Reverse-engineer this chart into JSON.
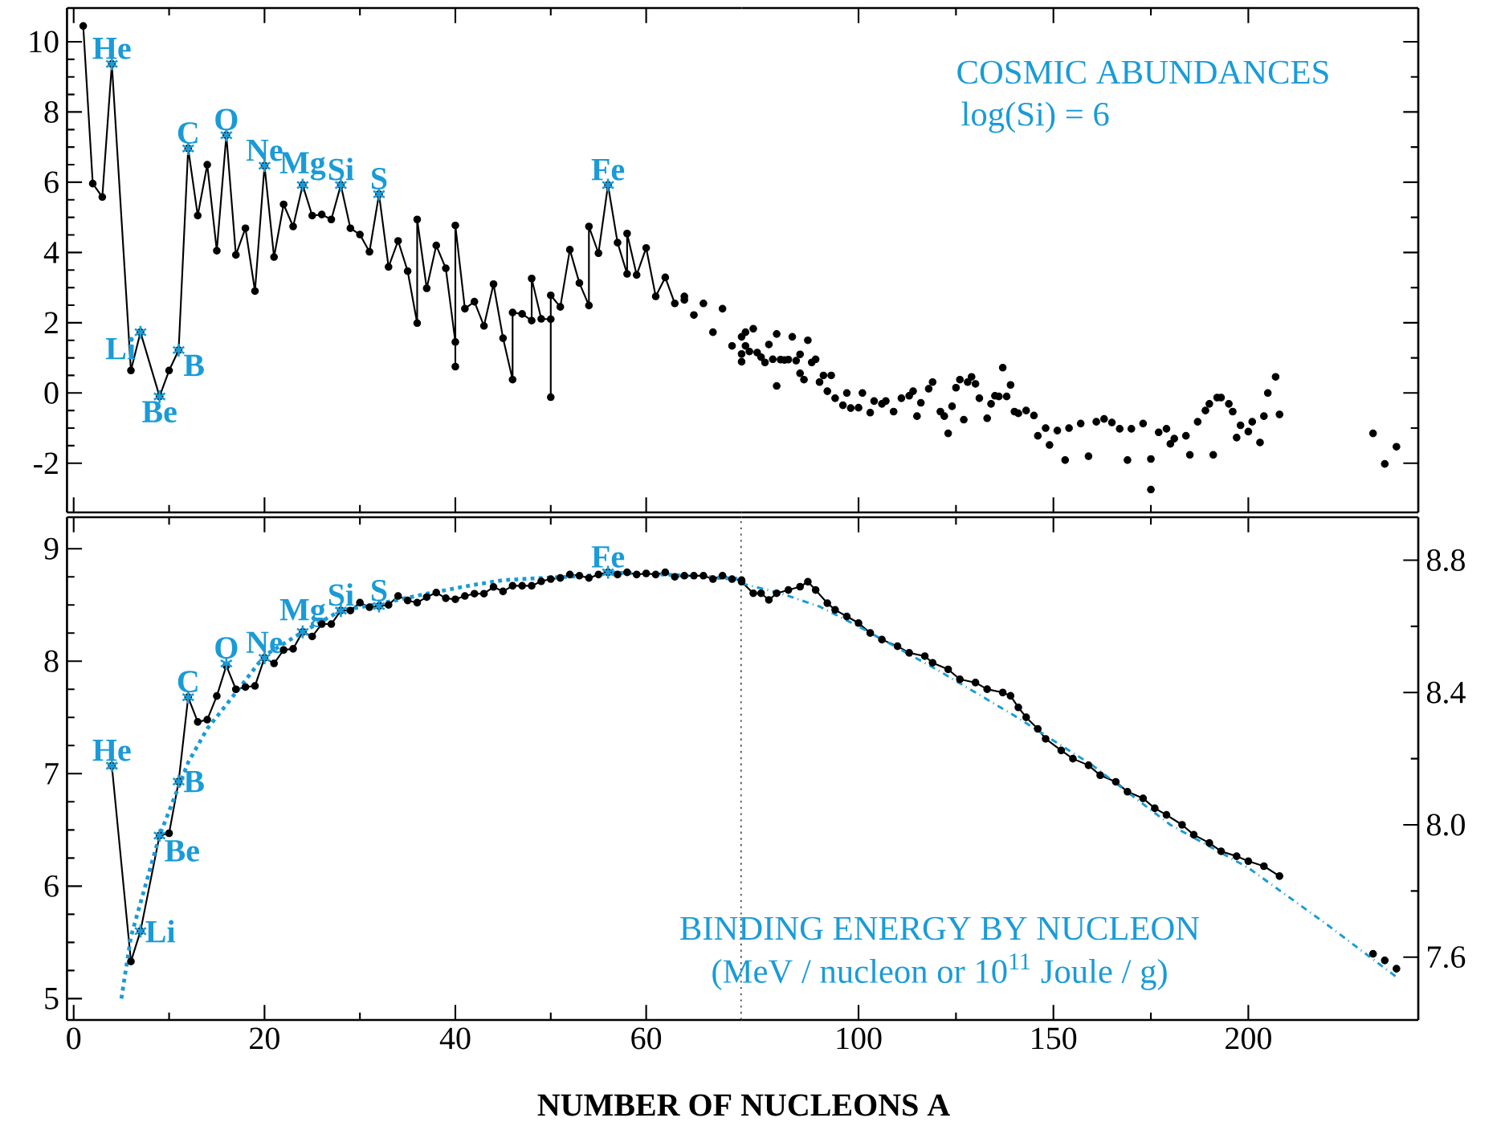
{
  "chart_data": [
    {
      "type": "line",
      "marker": "circle",
      "tick_labels": "y",
      "xlim": [
        -0.7,
        70
      ],
      "xticks": [
        0,
        20,
        40,
        60
      ],
      "ylim": [
        -3.4,
        10.96
      ],
      "yticks": [
        -2,
        0,
        2,
        4,
        6,
        8,
        10
      ],
      "series": [
        {
          "color": "#000000",
          "x": [
            1,
            2,
            3,
            4,
            6,
            7,
            9,
            10,
            11,
            12,
            13,
            14,
            15,
            16,
            17,
            18,
            19,
            20,
            21,
            22,
            23,
            24,
            25,
            26,
            27,
            28,
            29,
            30,
            31,
            32,
            33,
            34,
            35,
            36,
            36,
            37,
            38,
            39,
            40,
            40,
            40,
            41,
            42,
            43,
            44,
            45,
            46,
            46,
            47,
            48,
            48,
            49,
            50,
            50,
            50,
            51,
            52,
            53,
            54,
            54,
            55,
            56,
            57,
            58,
            58,
            59,
            60,
            61,
            62,
            63
          ],
          "values": [
            10.45,
            5.96,
            5.58,
            9.37,
            0.64,
            1.73,
            -0.1,
            0.64,
            1.22,
            6.96,
            5.05,
            6.5,
            4.05,
            7.34,
            3.93,
            4.69,
            2.9,
            6.47,
            3.87,
            5.37,
            4.74,
            5.92,
            5.05,
            5.08,
            4.94,
            5.92,
            4.69,
            4.51,
            4.02,
            5.66,
            3.59,
            4.33,
            3.47,
            1.99,
            4.94,
            2.98,
            4.2,
            3.55,
            1.45,
            0.75,
            4.77,
            2.4,
            2.6,
            1.91,
            3.1,
            1.56,
            0.38,
            2.29,
            2.25,
            2.06,
            3.26,
            2.11,
            2.1,
            -0.12,
            2.78,
            2.45,
            4.08,
            3.13,
            2.49,
            4.74,
            3.98,
            5.92,
            4.28,
            3.39,
            4.54,
            3.36,
            4.13,
            2.75,
            3.29,
            2.55
          ]
        },
        {
          "type": "scatter",
          "color": "#000000",
          "x": [
            64,
            64,
            65,
            66,
            67,
            68,
            69,
            70,
            70,
            70
          ],
          "values": [
            2.75,
            2.65,
            2.22,
            2.55,
            1.73,
            2.4,
            1.34,
            1.6,
            1.11,
            0.89
          ]
        }
      ],
      "annotations": [
        {
          "text": "He",
          "x": 4,
          "y": 9.37
        },
        {
          "text": "Li",
          "x": 7,
          "y": 1.73
        },
        {
          "text": "Be",
          "x": 9,
          "y": -0.1
        },
        {
          "text": "B",
          "x": 11,
          "y": 1.22
        },
        {
          "text": "C",
          "x": 12,
          "y": 6.96
        },
        {
          "text": "O",
          "x": 16,
          "y": 7.34
        },
        {
          "text": "Ne",
          "x": 20,
          "y": 6.47
        },
        {
          "text": "Mg",
          "x": 24,
          "y": 5.92
        },
        {
          "text": "Si",
          "x": 28,
          "y": 5.92
        },
        {
          "text": "S",
          "x": 32,
          "y": 5.66
        },
        {
          "text": "Fe",
          "x": 56,
          "y": 5.92
        }
      ]
    },
    {
      "type": "scatter",
      "title": "COSMIC ABUNDANCES",
      "subtitle": "log(Si) = 6",
      "marker": "circle",
      "tick_labels": false,
      "xlim": [
        70,
        243.6
      ],
      "xticks": [
        100,
        150,
        200
      ],
      "ylim": [
        -3.4,
        10.96
      ],
      "yticks": [
        -2,
        0,
        2,
        4,
        6,
        8,
        10
      ],
      "series": [
        {
          "color": "#000000",
          "x": [
            71,
            71,
            72,
            73,
            74,
            75,
            76,
            77,
            78,
            79,
            79,
            80,
            81,
            82,
            83,
            84,
            85,
            85,
            86,
            87,
            88,
            89,
            90,
            91,
            92,
            93,
            94,
            96,
            97,
            98,
            100,
            101,
            103,
            104,
            106,
            107,
            109,
            111,
            113,
            114,
            115,
            116,
            118,
            119,
            121,
            122,
            123,
            124,
            125,
            126,
            127,
            128,
            129,
            130,
            131,
            133,
            134,
            135,
            136,
            137,
            138,
            139,
            140,
            141,
            143,
            145,
            146,
            148,
            149,
            151,
            153,
            154,
            157,
            159,
            161,
            163,
            165,
            167,
            169,
            170,
            173,
            175,
            175,
            177,
            179,
            180,
            181,
            184,
            185,
            187,
            189,
            190,
            191,
            192,
            193,
            195,
            196,
            197,
            198,
            200,
            201,
            203,
            204,
            205,
            207,
            208,
            232,
            235,
            238
          ],
          "values": [
            1.73,
            1.34,
            1.18,
            1.83,
            1.15,
            1.02,
            0.87,
            1.38,
            0.96,
            1.68,
            0.2,
            0.95,
            0.94,
            0.95,
            1.6,
            0.92,
            1.1,
            0.56,
            0.38,
            1.5,
            0.87,
            0.96,
            0.31,
            0.5,
            0.05,
            0.5,
            -0.15,
            -0.35,
            0.0,
            -0.43,
            -0.42,
            0.0,
            -0.56,
            -0.23,
            -0.31,
            -0.23,
            -0.53,
            -0.15,
            -0.08,
            0.05,
            -0.66,
            -0.28,
            0.12,
            0.31,
            -0.53,
            -0.66,
            -1.15,
            -0.38,
            0.15,
            0.38,
            -0.76,
            0.31,
            0.46,
            0.26,
            -0.15,
            -0.72,
            -0.31,
            -0.08,
            -0.1,
            0.72,
            -0.1,
            0.23,
            -0.53,
            -0.58,
            -0.5,
            -0.64,
            -1.22,
            -1.0,
            -1.48,
            -1.07,
            -1.91,
            -1.0,
            -0.87,
            -1.8,
            -0.82,
            -0.74,
            -0.84,
            -1.02,
            -1.91,
            -1.02,
            -0.87,
            -1.88,
            -2.75,
            -1.12,
            -1.02,
            -1.45,
            -1.3,
            -1.22,
            -1.76,
            -0.82,
            -0.5,
            -0.31,
            -1.76,
            -0.13,
            -0.13,
            -0.31,
            -0.53,
            -1.27,
            -0.92,
            -1.1,
            -0.82,
            -1.41,
            -0.66,
            0.0,
            0.46,
            -0.61,
            -1.15,
            -2.02,
            -1.53
          ]
        }
      ]
    },
    {
      "type": "line",
      "xlabel": "NUMBER OF NUCLEONS  A",
      "marker": "circle",
      "xlim": [
        -0.7,
        70
      ],
      "xticks": [
        0,
        20,
        40,
        60
      ],
      "ylim": [
        4.81,
        9.28
      ],
      "yticks": [
        5,
        6,
        7,
        8,
        9
      ],
      "ref_lines": [
        {
          "axis": "x",
          "value": 70,
          "color": "#000000",
          "line_style": "dotted"
        }
      ],
      "series": [
        {
          "color": "#000000",
          "x": [
            4,
            6,
            7,
            9,
            10,
            11,
            12,
            13,
            14,
            15,
            16,
            17,
            18,
            19,
            20,
            21,
            22,
            23,
            24,
            25,
            26,
            27,
            28,
            29,
            30,
            31,
            32,
            33,
            34,
            35,
            36,
            37,
            38,
            39,
            40,
            41,
            42,
            43,
            44,
            45,
            46,
            47,
            48,
            49,
            50,
            51,
            52,
            53,
            54,
            55,
            56,
            57,
            58,
            59,
            60,
            61,
            62,
            63,
            64,
            65,
            66,
            67,
            68,
            69,
            70
          ],
          "values": [
            7.07,
            5.33,
            5.6,
            6.45,
            6.47,
            6.93,
            7.68,
            7.46,
            7.48,
            7.69,
            7.96,
            7.75,
            7.77,
            7.78,
            8.03,
            7.98,
            8.1,
            8.11,
            8.26,
            8.22,
            8.33,
            8.33,
            8.45,
            8.45,
            8.52,
            8.48,
            8.49,
            8.5,
            8.58,
            8.54,
            8.52,
            8.57,
            8.61,
            8.56,
            8.55,
            8.58,
            8.6,
            8.6,
            8.66,
            8.62,
            8.67,
            8.67,
            8.67,
            8.71,
            8.73,
            8.74,
            8.77,
            8.76,
            8.74,
            8.77,
            8.79,
            8.77,
            8.79,
            8.77,
            8.78,
            8.77,
            8.79,
            8.75,
            8.76,
            8.76,
            8.76,
            8.73,
            8.76,
            8.73,
            8.72
          ]
        },
        {
          "color": "#1a9bd7",
          "marker": "none",
          "line_style": "dotted",
          "x": [
            5,
            6,
            9,
            12,
            14,
            17,
            20,
            24,
            28,
            32,
            37,
            42,
            45,
            49,
            54,
            56,
            62,
            70
          ],
          "values": [
            5.0,
            5.55,
            6.45,
            7.1,
            7.4,
            7.72,
            8.05,
            8.26,
            8.45,
            8.51,
            8.6,
            8.68,
            8.72,
            8.74,
            8.76,
            8.79,
            8.77,
            8.73
          ]
        }
      ],
      "annotations": [
        {
          "text": "He",
          "x": 4,
          "y": 7.07
        },
        {
          "text": "Li",
          "x": 7,
          "y": 5.6
        },
        {
          "text": "Be",
          "x": 9,
          "y": 6.45
        },
        {
          "text": "B",
          "x": 11,
          "y": 6.93
        },
        {
          "text": "C",
          "x": 12,
          "y": 7.68
        },
        {
          "text": "O",
          "x": 16,
          "y": 7.98
        },
        {
          "text": "Ne",
          "x": 20,
          "y": 8.03
        },
        {
          "text": "Mg",
          "x": 24,
          "y": 8.26
        },
        {
          "text": "Si",
          "x": 28,
          "y": 8.45
        },
        {
          "text": "S",
          "x": 32,
          "y": 8.49
        },
        {
          "text": "Fe",
          "x": 56,
          "y": 8.79
        }
      ]
    },
    {
      "type": "line",
      "title": "BINDING ENERGY BY NUCLEON",
      "subtitle": "(MeV / nucleon or 10$^{11}$ Joule / g)",
      "marker": "circle",
      "xlim": [
        70,
        243.6
      ],
      "xticks": [
        100,
        150,
        200
      ],
      "ylim": [
        7.41,
        8.93
      ],
      "yticks": [
        7.6,
        {
          "value": 8,
          "label": "8.0"
        },
        8.4,
        8.8
      ],
      "series": [
        {
          "color": "#000000",
          "x": [
            70,
            73,
            75,
            77,
            79,
            82,
            85,
            87,
            89,
            92,
            94,
            97,
            100,
            103,
            106,
            110,
            113,
            117,
            119,
            123,
            126,
            130,
            133,
            137,
            139,
            141,
            143,
            146,
            148,
            152,
            155,
            159,
            162,
            166,
            169,
            173,
            176,
            179,
            183,
            186,
            190,
            193,
            197,
            200,
            204,
            208
          ],
          "values": [
            8.735,
            8.7,
            8.7,
            8.68,
            8.7,
            8.71,
            8.72,
            8.735,
            8.71,
            8.67,
            8.65,
            8.63,
            8.61,
            8.58,
            8.56,
            8.54,
            8.52,
            8.51,
            8.49,
            8.47,
            8.44,
            8.43,
            8.41,
            8.4,
            8.39,
            8.355,
            8.325,
            8.29,
            8.26,
            8.225,
            8.2,
            8.18,
            8.15,
            8.13,
            8.1,
            8.08,
            8.05,
            8.03,
            8.0,
            7.97,
            7.945,
            7.92,
            7.905,
            7.89,
            7.875,
            7.845
          ]
        },
        {
          "type": "scatter",
          "color": "#000000",
          "x": [
            232,
            235,
            238
          ],
          "values": [
            7.61,
            7.59,
            7.565
          ]
        },
        {
          "color": "#1a9bd7",
          "marker": "none",
          "line_style": "dashed",
          "x": [
            70,
            80,
            90,
            100,
            120,
            140,
            160,
            180,
            200,
            220,
            238
          ],
          "values": [
            8.73,
            8.7,
            8.66,
            8.6,
            8.47,
            8.33,
            8.18,
            8.0,
            7.87,
            7.7,
            7.54
          ]
        }
      ]
    }
  ]
}
